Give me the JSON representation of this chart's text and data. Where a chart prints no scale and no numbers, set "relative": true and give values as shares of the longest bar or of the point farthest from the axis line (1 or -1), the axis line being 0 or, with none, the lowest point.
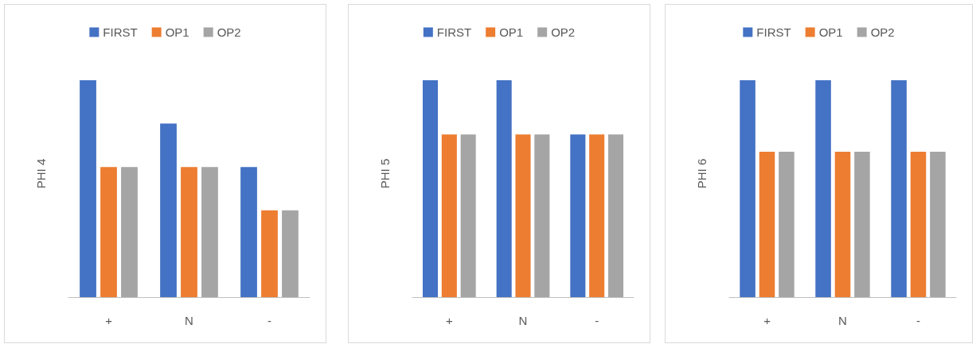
{
  "chart_data": [
    {
      "type": "bar",
      "relative": true,
      "ylabel": "PHI 4",
      "categories": [
        "+",
        "N",
        "-"
      ],
      "legend": "top",
      "series": [
        {
          "name": "FIRST",
          "color": "#4472c4",
          "values": [
            1,
            0.8,
            0.6
          ]
        },
        {
          "name": "OP1",
          "color": "#ed7d31",
          "values": [
            0.6,
            0.6,
            0.4
          ]
        },
        {
          "name": "OP2",
          "color": "#a5a5a5",
          "values": [
            0.6,
            0.6,
            0.4
          ]
        }
      ]
    },
    {
      "type": "bar",
      "relative": true,
      "ylabel": "PHI 5",
      "categories": [
        "+",
        "N",
        "-"
      ],
      "legend": "top",
      "series": [
        {
          "name": "FIRST",
          "color": "#4472c4",
          "values": [
            1,
            1,
            0.75
          ]
        },
        {
          "name": "OP1",
          "color": "#ed7d31",
          "values": [
            0.75,
            0.75,
            0.75
          ]
        },
        {
          "name": "OP2",
          "color": "#a5a5a5",
          "values": [
            0.75,
            0.75,
            0.75
          ]
        }
      ]
    },
    {
      "type": "bar",
      "relative": true,
      "ylabel": "PHI 6",
      "categories": [
        "+",
        "N",
        "-"
      ],
      "legend": "top",
      "series": [
        {
          "name": "FIRST",
          "color": "#4472c4",
          "values": [
            1,
            1,
            1
          ]
        },
        {
          "name": "OP1",
          "color": "#ed7d31",
          "values": [
            0.67,
            0.67,
            0.67
          ]
        },
        {
          "name": "OP2",
          "color": "#a5a5a5",
          "values": [
            0.67,
            0.67,
            0.67
          ]
        }
      ]
    }
  ]
}
